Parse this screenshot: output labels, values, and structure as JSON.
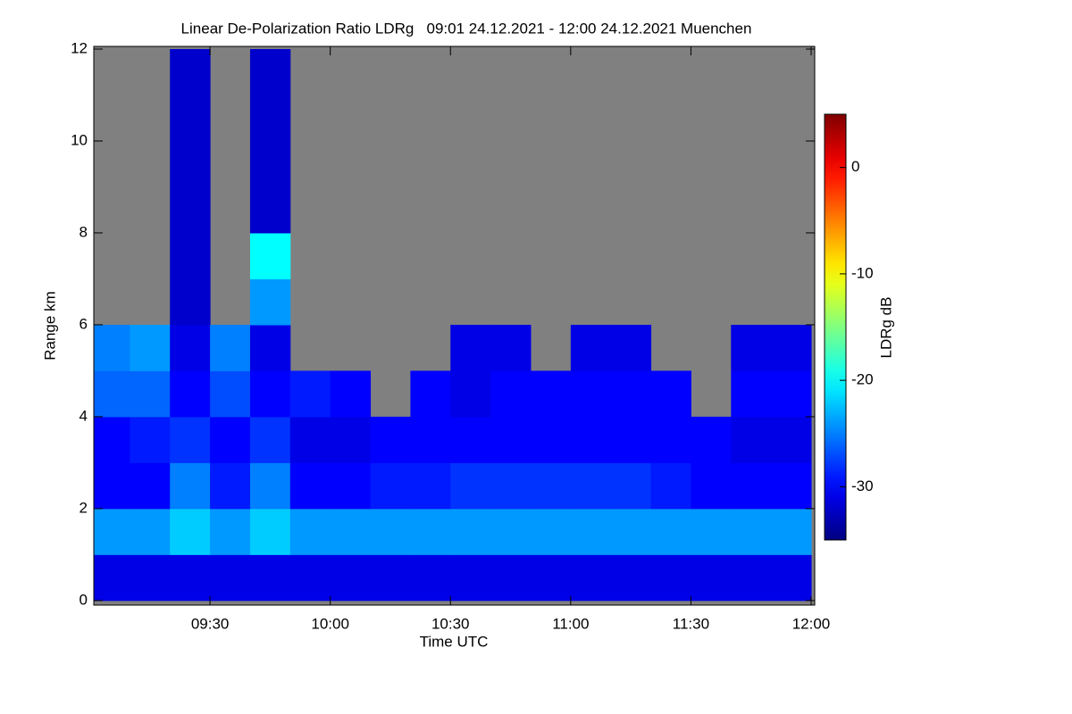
{
  "chart_data": {
    "type": "heatmap",
    "title": "Linear De-Polarization Ratio LDRg   09:01 24.12.2021 - 12:00 24.12.2021 Muenchen",
    "x_label": "Time UTC",
    "y_label": "Range km",
    "colorbar_label": "LDRg dB",
    "xlim": [
      9.0167,
      12.0
    ],
    "xticks": [
      {
        "value": 9.5,
        "label": "09:30"
      },
      {
        "value": 10,
        "label": "10:00"
      },
      {
        "value": 10.5,
        "label": "10:30"
      },
      {
        "value": 11,
        "label": "11:00"
      },
      {
        "value": 11.5,
        "label": "11:30"
      },
      {
        "value": 12,
        "label": "12:00"
      }
    ],
    "ylim": [
      -0.1,
      12
    ],
    "yticks": [
      0,
      2,
      4,
      6,
      8,
      10,
      12
    ],
    "zlim": [
      -35,
      5
    ],
    "zticks": [
      0,
      -10,
      -20,
      -30
    ],
    "colormap": "jet",
    "missing_color": "#808080",
    "x_bins": [
      9,
      9.1667,
      9.3333,
      9.5,
      9.6667,
      9.8333,
      10,
      10.1667,
      10.3333,
      10.5,
      10.6667,
      10.8333,
      11,
      11.1667,
      11.3333,
      11.5,
      11.6667,
      11.8333,
      12
    ],
    "y_bins": [
      0,
      1,
      2,
      3,
      4,
      5,
      6,
      7,
      8,
      9,
      10,
      11,
      12
    ],
    "z": [
      [
        -31,
        -31,
        -31,
        -31,
        -31,
        -31,
        -31,
        -31,
        -31,
        -31,
        -31,
        -31,
        -31,
        -31,
        -31,
        -31,
        -31,
        -31
      ],
      [
        -24,
        -24,
        -22,
        -24,
        -22,
        -24,
        -24,
        -24,
        -24,
        -24,
        -24,
        -24,
        -24,
        -24,
        -24,
        -24,
        -24,
        -24
      ],
      [
        -30,
        -30,
        -25,
        -29,
        -25,
        -30,
        -30,
        -29,
        -29,
        -28,
        -28,
        -28,
        -28,
        -28,
        -29,
        -30,
        -30,
        -30
      ],
      [
        -30,
        -29,
        -28,
        -30,
        -28,
        -31,
        -31,
        -30,
        -30,
        -30,
        -30,
        -30,
        -30,
        -30,
        -30,
        -30,
        -31,
        -31
      ],
      [
        -26,
        -26,
        -30,
        -27,
        -30,
        -29,
        -30,
        null,
        -30,
        -31,
        -30,
        -30,
        -30,
        -30,
        -30,
        null,
        -30,
        -30
      ],
      [
        -25,
        -24,
        -31,
        -25,
        -31,
        null,
        null,
        null,
        null,
        -31,
        -31,
        null,
        -31,
        -31,
        null,
        null,
        -31,
        -31
      ],
      [
        null,
        null,
        -32,
        null,
        -24,
        null,
        null,
        null,
        null,
        null,
        null,
        null,
        null,
        null,
        null,
        null,
        null,
        null
      ],
      [
        null,
        null,
        -32,
        null,
        -20,
        null,
        null,
        null,
        null,
        null,
        null,
        null,
        null,
        null,
        null,
        null,
        null,
        null
      ],
      [
        null,
        null,
        -32,
        null,
        -32,
        null,
        null,
        null,
        null,
        null,
        null,
        null,
        null,
        null,
        null,
        null,
        null,
        null
      ],
      [
        null,
        null,
        -32,
        null,
        -32,
        null,
        null,
        null,
        null,
        null,
        null,
        null,
        null,
        null,
        null,
        null,
        null,
        null
      ],
      [
        null,
        null,
        -32,
        null,
        -32,
        null,
        null,
        null,
        null,
        null,
        null,
        null,
        null,
        null,
        null,
        null,
        null,
        null
      ],
      [
        null,
        null,
        -32,
        null,
        -32,
        null,
        null,
        null,
        null,
        null,
        null,
        null,
        null,
        null,
        null,
        null,
        null,
        null
      ]
    ]
  }
}
